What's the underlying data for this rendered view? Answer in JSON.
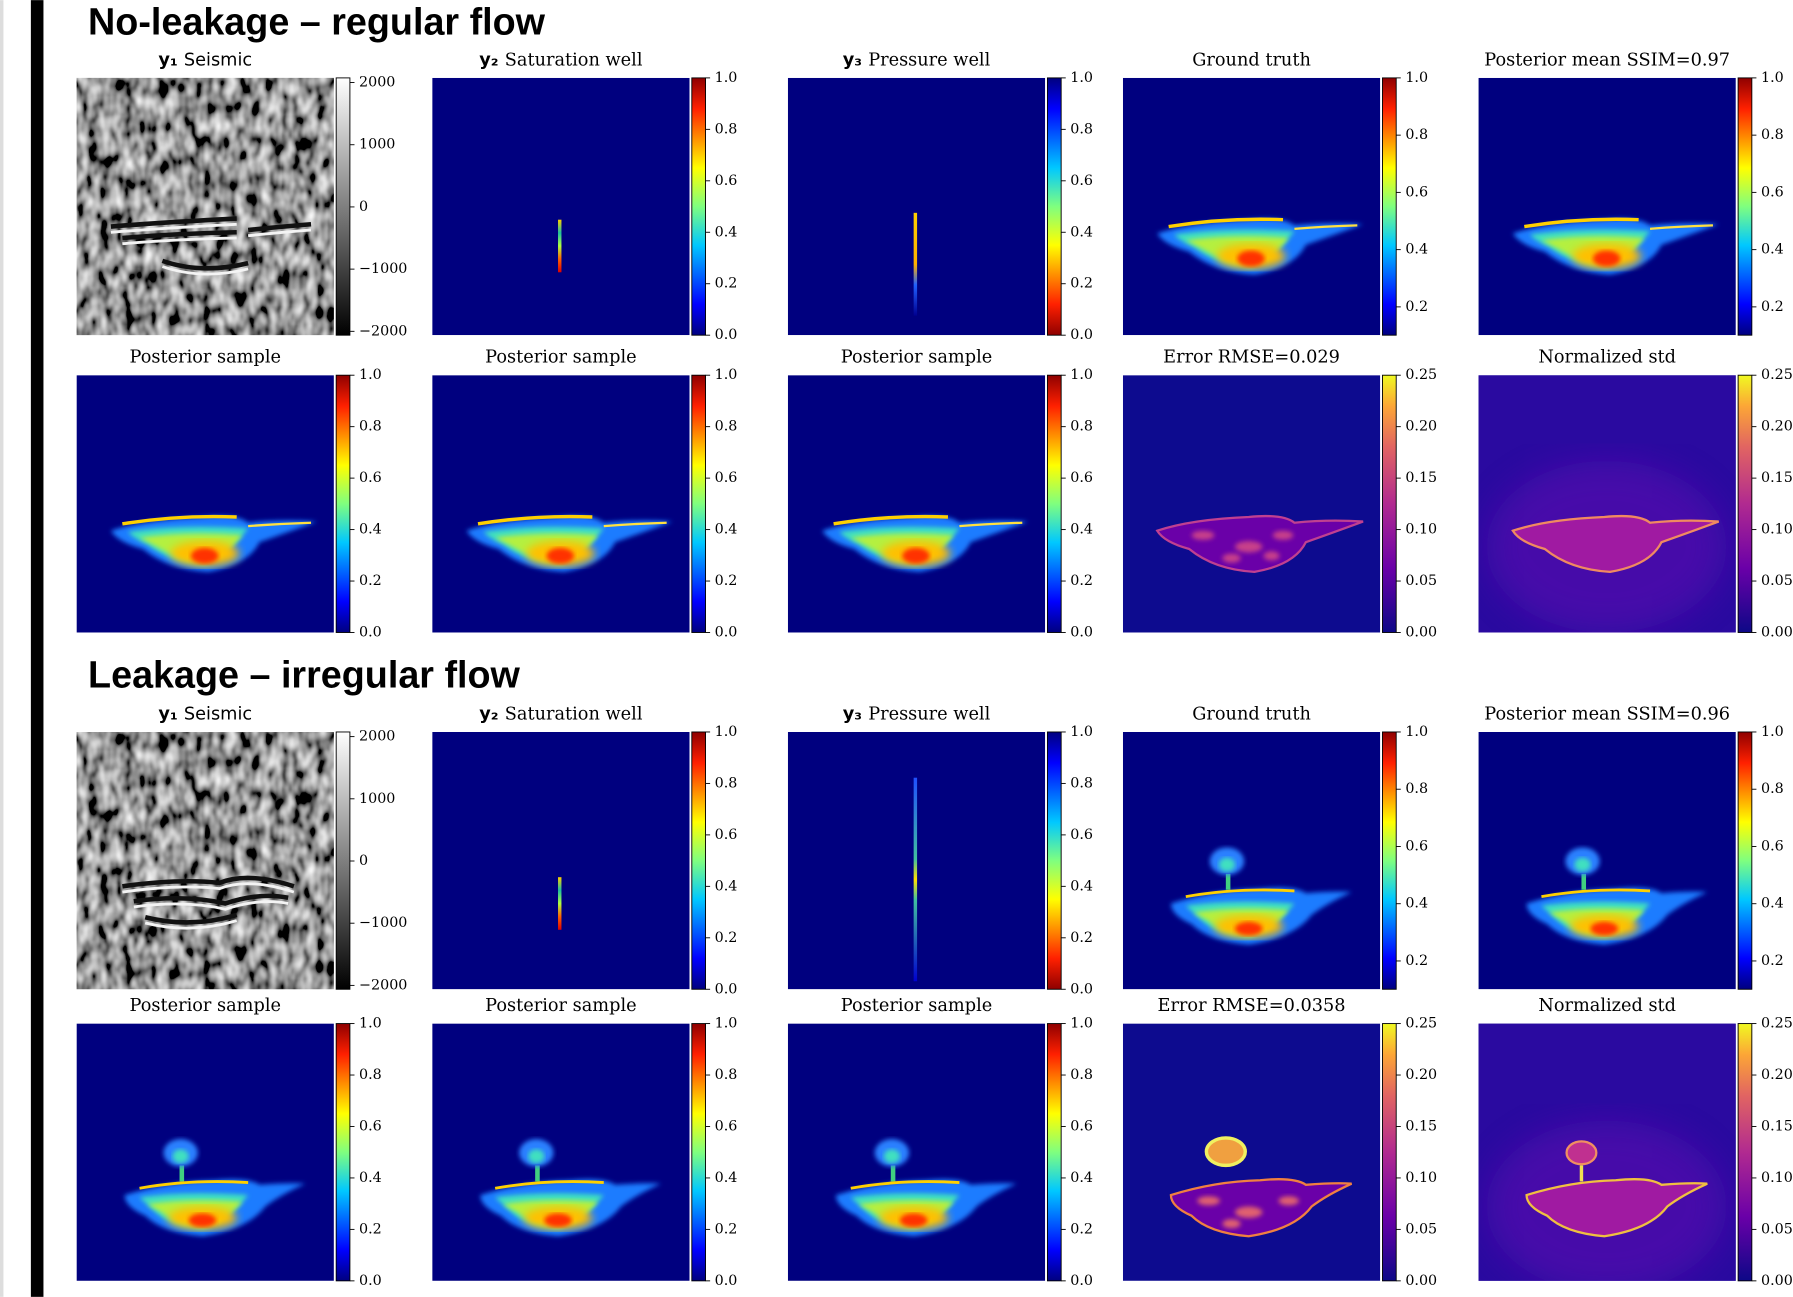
{
  "sections": [
    {
      "title": "No-leakage – regular flow",
      "panels": [
        {
          "symbol": "y₁",
          "title": "Seismic",
          "colorbar": [
            "−2000",
            "−1000",
            "0",
            "1000",
            "2000"
          ]
        },
        {
          "symbol": "y₂",
          "title": "Saturation well",
          "colorbar": [
            "0.0",
            "0.2",
            "0.4",
            "0.6",
            "0.8",
            "1.0"
          ]
        },
        {
          "symbol": "y₃",
          "title": "Pressure well",
          "colorbar": [
            "0.0",
            "0.2",
            "0.4",
            "0.6",
            "0.8",
            "1.0"
          ]
        },
        {
          "title": "Ground truth",
          "colorbar": [
            "0.2",
            "0.4",
            "0.6",
            "0.8",
            "1.0"
          ]
        },
        {
          "title": "Posterior mean SSIM=0.97",
          "colorbar": [
            "0.2",
            "0.4",
            "0.6",
            "0.8",
            "1.0"
          ]
        },
        {
          "title": "Posterior sample",
          "colorbar": [
            "0.0",
            "0.2",
            "0.4",
            "0.6",
            "0.8",
            "1.0"
          ]
        },
        {
          "title": "Posterior sample",
          "colorbar": [
            "0.0",
            "0.2",
            "0.4",
            "0.6",
            "0.8",
            "1.0"
          ]
        },
        {
          "title": "Posterior sample",
          "colorbar": [
            "0.0",
            "0.2",
            "0.4",
            "0.6",
            "0.8",
            "1.0"
          ]
        },
        {
          "title": "Error RMSE=0.029",
          "colorbar": [
            "0.00",
            "0.05",
            "0.10",
            "0.15",
            "0.20",
            "0.25"
          ]
        },
        {
          "title": "Normalized std",
          "colorbar": [
            "0.00",
            "0.05",
            "0.10",
            "0.15",
            "0.20",
            "0.25"
          ]
        }
      ]
    },
    {
      "title": "Leakage – irregular flow",
      "panels": [
        {
          "symbol": "y₁",
          "title": "Seismic",
          "colorbar": [
            "−2000",
            "−1000",
            "0",
            "1000",
            "2000"
          ]
        },
        {
          "symbol": "y₂",
          "title": "Saturation well",
          "colorbar": [
            "0.0",
            "0.2",
            "0.4",
            "0.6",
            "0.8",
            "1.0"
          ]
        },
        {
          "symbol": "y₃",
          "title": "Pressure well",
          "colorbar": [
            "0.0",
            "0.2",
            "0.4",
            "0.6",
            "0.8",
            "1.0"
          ]
        },
        {
          "title": "Ground truth",
          "colorbar": [
            "0.2",
            "0.4",
            "0.6",
            "0.8",
            "1.0"
          ]
        },
        {
          "title": "Posterior mean SSIM=0.96",
          "colorbar": [
            "0.2",
            "0.4",
            "0.6",
            "0.8",
            "1.0"
          ]
        },
        {
          "title": "Posterior sample",
          "colorbar": [
            "0.0",
            "0.2",
            "0.4",
            "0.6",
            "0.8",
            "1.0"
          ]
        },
        {
          "title": "Posterior sample",
          "colorbar": [
            "0.0",
            "0.2",
            "0.4",
            "0.6",
            "0.8",
            "1.0"
          ]
        },
        {
          "title": "Posterior sample",
          "colorbar": [
            "0.0",
            "0.2",
            "0.4",
            "0.6",
            "0.8",
            "1.0"
          ]
        },
        {
          "title": "Error RMSE=0.0358",
          "colorbar": [
            "0.00",
            "0.05",
            "0.10",
            "0.15",
            "0.20",
            "0.25"
          ]
        },
        {
          "title": "Normalized std",
          "colorbar": [
            "0.00",
            "0.05",
            "0.10",
            "0.15",
            "0.20",
            "0.25"
          ]
        }
      ]
    }
  ]
}
